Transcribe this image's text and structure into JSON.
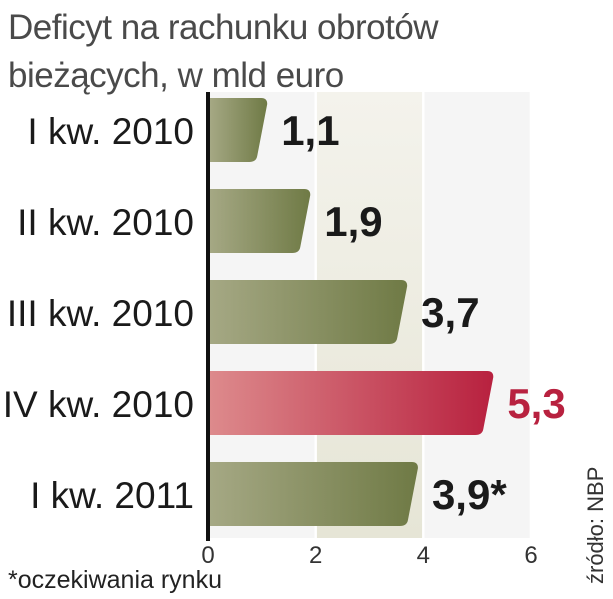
{
  "chart_data": {
    "type": "bar",
    "orientation": "horizontal",
    "title": "Deficyt na rachunku obrotów bieżących, w mld euro",
    "title_lines": [
      "Deficyt na rachunku obrotów",
      "bieżących, w mld euro"
    ],
    "categories": [
      "I kw. 2010",
      "II kw. 2010",
      "III kw. 2010",
      "IV kw. 2010",
      "I kw. 2011"
    ],
    "values": [
      1.1,
      1.9,
      3.7,
      5.3,
      3.9
    ],
    "value_labels": [
      "1,1",
      "1,9",
      "3,7",
      "5,3",
      "3,9*"
    ],
    "highlight_index": 3,
    "colors": {
      "bar": "#6f7a45",
      "bar_light": "#a5a884",
      "highlight": "#b8213f",
      "highlight_light": "#dd8a8c",
      "highlight_label": "#b8213f",
      "label": "#1a1a1a",
      "band": "#e6e5d6"
    },
    "xlim": [
      0,
      6
    ],
    "xticks": [
      "0",
      "2",
      "4",
      "6"
    ],
    "grid": true,
    "footnote": "*oczekiwania rynku",
    "source": "źródło: NBP"
  }
}
